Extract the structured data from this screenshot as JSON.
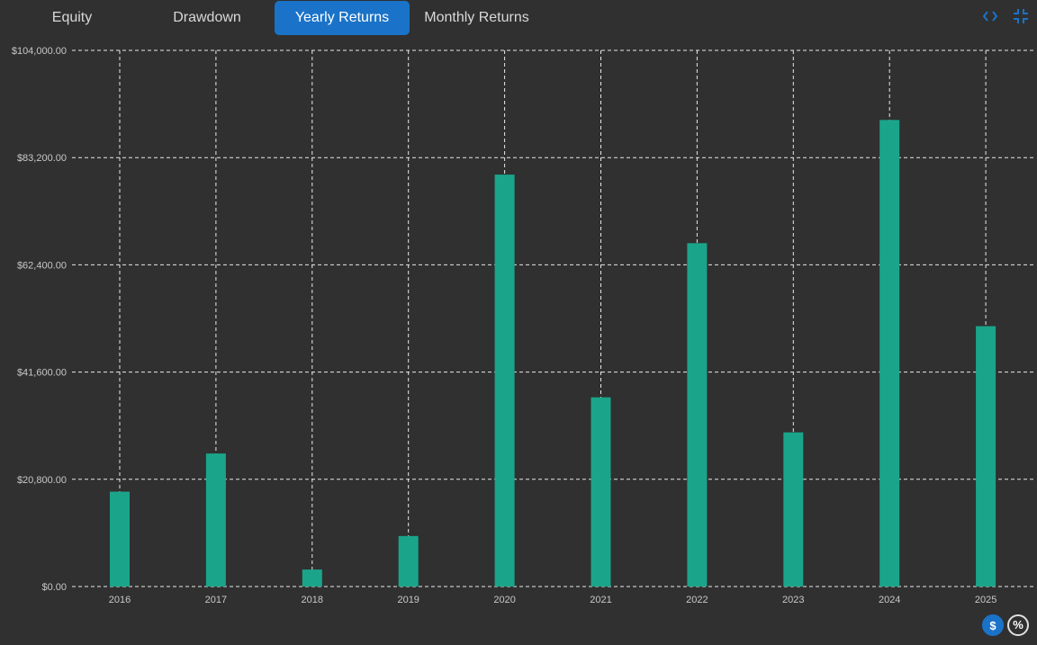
{
  "tabs": [
    {
      "label": "Equity",
      "active": false
    },
    {
      "label": "Drawdown",
      "active": false
    },
    {
      "label": "Yearly Returns",
      "active": true
    },
    {
      "label": "Monthly Returns",
      "active": false
    }
  ],
  "icons": {
    "code": "code-icon",
    "collapse": "collapse-icon"
  },
  "unit_toggle": {
    "dollar_label": "$",
    "percent_label": "%",
    "selected": "$"
  },
  "colors": {
    "bar": "#1aa58a",
    "accent": "#1a73c8",
    "grid": "#e8e8e8",
    "background": "#303030"
  },
  "chart_data": {
    "type": "bar",
    "categories": [
      "2016",
      "2017",
      "2018",
      "2019",
      "2020",
      "2021",
      "2022",
      "2023",
      "2024",
      "2025"
    ],
    "values": [
      18400,
      25800,
      3300,
      9800,
      79900,
      36700,
      66600,
      29900,
      90500,
      50500
    ],
    "ylim": [
      0,
      104000
    ],
    "yticks": [
      0,
      20800,
      41600,
      62400,
      83200,
      104000
    ],
    "ytick_labels": [
      "$0.00",
      "$20,800.00",
      "$41,600.00",
      "$62,400.00",
      "$83,200.00",
      "$104,000.00"
    ],
    "grid": true,
    "title": "",
    "xlabel": "",
    "ylabel": ""
  }
}
